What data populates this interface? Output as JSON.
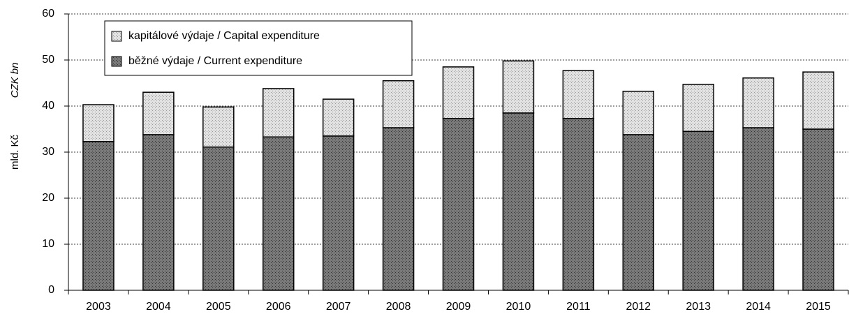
{
  "chart_data": {
    "type": "stacked_bar",
    "ylabel": "mld. Kč",
    "ylabel_en": "CZK bn",
    "categories": [
      "2003",
      "2004",
      "2005",
      "2006",
      "2007",
      "2008",
      "2009",
      "2010",
      "2011",
      "2012",
      "2013",
      "2014",
      "2015"
    ],
    "series": [
      {
        "name": "běžné výdaje / Current expenditure",
        "color": "#7a7a7a",
        "values": [
          32.3,
          33.8,
          31.1,
          33.3,
          33.5,
          35.3,
          37.3,
          38.5,
          37.3,
          33.8,
          34.5,
          35.3,
          35.0
        ]
      },
      {
        "name": "kapitálové výdaje / Capital expenditure",
        "color": "#e2e2e2",
        "values": [
          8.0,
          9.2,
          8.7,
          10.5,
          8.0,
          10.2,
          11.2,
          11.3,
          10.4,
          9.4,
          10.2,
          10.8,
          12.4
        ]
      }
    ],
    "ylim": [
      0,
      60
    ],
    "yticks": [
      0,
      10,
      20,
      30,
      40,
      50,
      60
    ],
    "grid": true,
    "legend": "upper left"
  }
}
